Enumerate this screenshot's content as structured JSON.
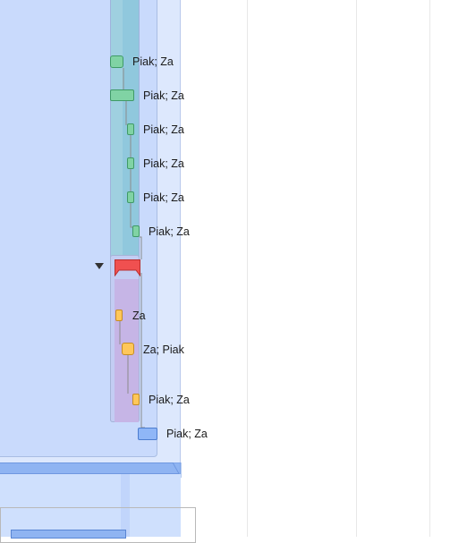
{
  "timeline": {
    "tasks": [
      {
        "label": "Piak; Za",
        "color": "green"
      },
      {
        "label": "Piak; Za",
        "color": "green"
      },
      {
        "label": "Piak; Za",
        "color": "green"
      },
      {
        "label": "Piak; Za",
        "color": "green"
      },
      {
        "label": "Piak; Za",
        "color": "green"
      },
      {
        "label": "Piak; Za",
        "color": "green"
      },
      {
        "label": "Za",
        "color": "orange"
      },
      {
        "label": "Za; Piak",
        "color": "orange"
      },
      {
        "label": "Piak; Za",
        "color": "orange"
      },
      {
        "label": "Piak; Za",
        "color": "blue"
      }
    ],
    "collapse_icon": "triangle-down-icon",
    "milestone_icon": "red-flag-icon"
  },
  "colors": {
    "green": "#80d3a4",
    "orange": "#ffc75a",
    "blue": "#8fb6f7",
    "milestone": "#f05050"
  }
}
